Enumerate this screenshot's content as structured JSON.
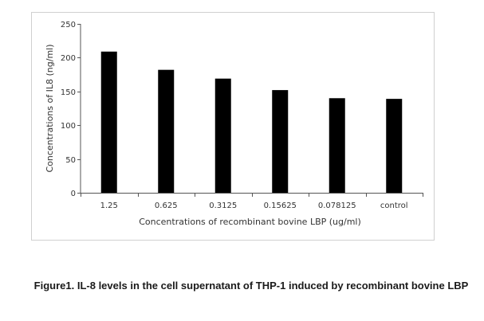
{
  "chart_data": {
    "type": "bar",
    "categories": [
      "1.25",
      "0.625",
      "0.3125",
      "0.15625",
      "0.078125",
      "control"
    ],
    "values": [
      209,
      182,
      169,
      152,
      140,
      139
    ],
    "xlabel": "Concentrations of recombinant bovine LBP (ug/ml)",
    "ylabel": "Concentrations of IL8 (ng/ml)",
    "ylim": [
      0,
      250
    ],
    "yticks": [
      0,
      50,
      100,
      150,
      200,
      250
    ],
    "grid": false,
    "legend": "none",
    "bar_color": "#000000"
  },
  "caption": "Figure1. IL-8 levels in the cell supernatant of THP-1 induced by recombinant bovine LBP"
}
